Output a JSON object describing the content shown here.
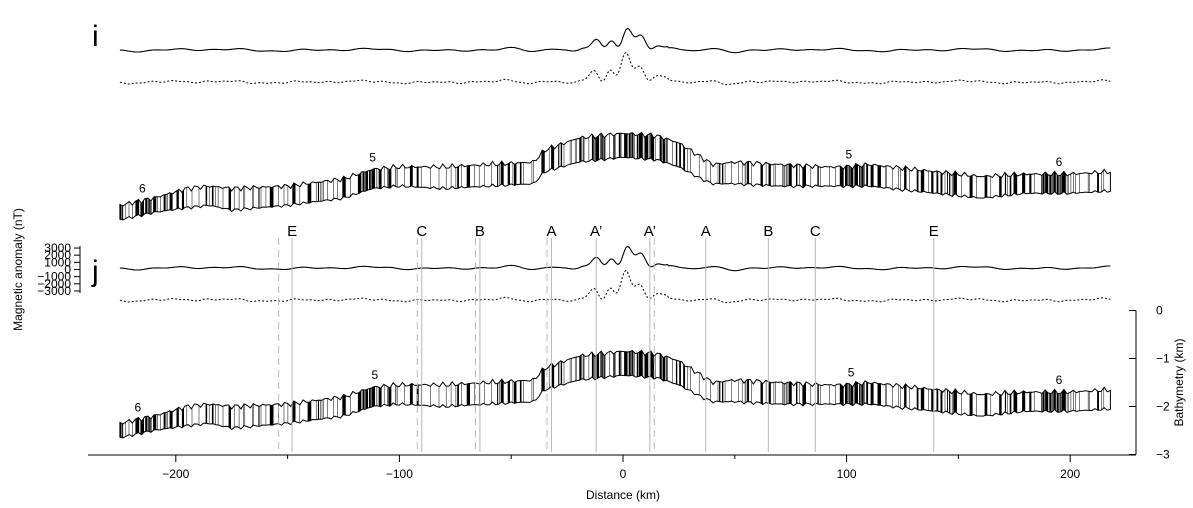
{
  "chart_data": {
    "type": "line",
    "panels": [
      {
        "letter": "i",
        "chron_labels": [
          {
            "x": -215,
            "text": "6"
          },
          {
            "x": -112,
            "text": "5"
          },
          {
            "x": 101,
            "text": "5"
          },
          {
            "x": 195,
            "text": "6"
          }
        ]
      },
      {
        "letter": "j",
        "chron_labels": [
          {
            "x": -217,
            "text": "6"
          },
          {
            "x": -111,
            "text": "5"
          },
          {
            "x": 102,
            "text": "5"
          },
          {
            "x": 195,
            "text": "6"
          }
        ]
      }
    ],
    "x_axis": {
      "label": "Distance (km)",
      "range": [
        -240,
        230
      ],
      "ticks": [
        -200,
        -100,
        0,
        100,
        200
      ],
      "tick_labels": [
        "−200",
        "−100",
        "0",
        "100",
        "200"
      ],
      "data_range": [
        -225,
        218
      ]
    },
    "magnetic_axis": {
      "label": "Magnetic anomaly (nT)",
      "range": [
        -3000,
        3000
      ],
      "ticks": [
        3000,
        2000,
        1000,
        0,
        -1000,
        -2000,
        -3000
      ],
      "tick_labels": [
        "3000",
        "2000",
        "1000",
        "0",
        "−1000",
        "−2000",
        "−3000"
      ]
    },
    "bathymetry_axis": {
      "label": "Bathymetry (km)",
      "range": [
        -3,
        0
      ],
      "ticks": [
        0,
        -1,
        -2,
        -3
      ],
      "tick_labels": [
        "0",
        "−1",
        "−2",
        "−3"
      ]
    },
    "markers": [
      {
        "label": "E",
        "x": -148
      },
      {
        "label": "C",
        "x": -90
      },
      {
        "label": "B",
        "x": -64
      },
      {
        "label": "A",
        "x": -32
      },
      {
        "label": "A’",
        "x": -12
      },
      {
        "label": "A’",
        "x": 12
      },
      {
        "label": "A",
        "x": 37
      },
      {
        "label": "B",
        "x": 65
      },
      {
        "label": "C",
        "x": 86
      },
      {
        "label": "E",
        "x": 139
      }
    ],
    "dashed_lines_x": [
      -154,
      -92,
      -66,
      -34,
      14
    ],
    "series": [
      {
        "style": "solid",
        "values": "magnetic anomaly (observed)"
      },
      {
        "style": "dotted",
        "values": "magnetic anomaly (modelled)"
      },
      {
        "style": "band",
        "values": "bathymetry"
      }
    ],
    "bathymetry_profile": {
      "x": [
        -225,
        -210,
        -195,
        -185,
        -175,
        -150,
        -125,
        -112,
        -100,
        -80,
        -60,
        -40,
        -35,
        -20,
        0,
        15,
        25,
        35,
        40,
        50,
        70,
        90,
        100,
        110,
        120,
        140,
        160,
        180,
        200,
        218
      ],
      "top_km": [
        -2.35,
        -2.2,
        -2.0,
        -1.95,
        -2.0,
        -1.95,
        -1.8,
        -1.6,
        -1.55,
        -1.55,
        -1.5,
        -1.45,
        -1.2,
        -0.95,
        -0.85,
        -0.9,
        -1.05,
        -1.35,
        -1.5,
        -1.45,
        -1.5,
        -1.55,
        -1.55,
        -1.5,
        -1.55,
        -1.65,
        -1.75,
        -1.7,
        -1.7,
        -1.65
      ],
      "bottom_km": [
        -2.65,
        -2.5,
        -2.4,
        -2.35,
        -2.45,
        -2.35,
        -2.2,
        -2.0,
        -1.95,
        -2.0,
        -1.95,
        -1.9,
        -1.65,
        -1.45,
        -1.35,
        -1.4,
        -1.55,
        -1.8,
        -1.9,
        -1.9,
        -1.95,
        -1.95,
        -1.95,
        -1.95,
        -2.0,
        -2.1,
        -2.2,
        -2.1,
        -2.1,
        -2.05
      ]
    },
    "grid": false
  }
}
